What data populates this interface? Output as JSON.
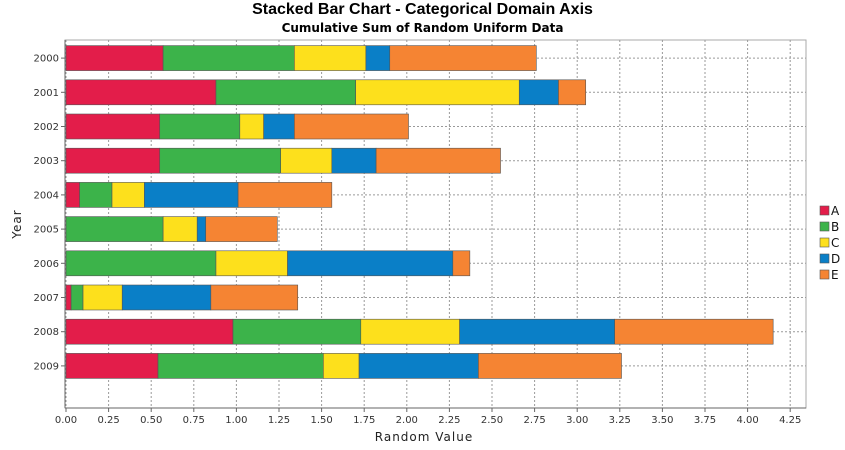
{
  "chart_data": {
    "type": "bar",
    "orientation": "horizontal",
    "stacked": true,
    "title": "Stacked Bar Chart - Categorical Domain Axis",
    "subtitle": "Cumulative Sum of Random Uniform Data",
    "xlabel": "Random Value",
    "ylabel": "Year",
    "xlim": [
      0,
      4.35
    ],
    "xticks": [
      "0.00",
      "0.25",
      "0.50",
      "0.75",
      "1.00",
      "1.25",
      "1.50",
      "1.75",
      "2.00",
      "2.25",
      "2.50",
      "2.75",
      "3.00",
      "3.25",
      "3.50",
      "3.75",
      "4.00",
      "4.25"
    ],
    "grid": true,
    "legend_position": "right",
    "categories": [
      "2000",
      "2001",
      "2002",
      "2003",
      "2004",
      "2005",
      "2006",
      "2007",
      "2008",
      "2009"
    ],
    "series": [
      {
        "name": "A",
        "color": "#e31d4a",
        "values": [
          0.57,
          0.88,
          0.55,
          0.55,
          0.08,
          0.0,
          0.0,
          0.03,
          0.98,
          0.54
        ]
      },
      {
        "name": "B",
        "color": "#3cb34a",
        "values": [
          0.77,
          0.82,
          0.47,
          0.71,
          0.19,
          0.57,
          0.88,
          0.07,
          0.75,
          0.97
        ]
      },
      {
        "name": "C",
        "color": "#fde01c",
        "values": [
          0.42,
          0.96,
          0.14,
          0.3,
          0.19,
          0.2,
          0.42,
          0.23,
          0.58,
          0.21
        ]
      },
      {
        "name": "D",
        "color": "#0a7fc7",
        "values": [
          0.14,
          0.23,
          0.18,
          0.26,
          0.55,
          0.05,
          0.97,
          0.52,
          0.91,
          0.7
        ]
      },
      {
        "name": "E",
        "color": "#f58433",
        "values": [
          0.86,
          0.16,
          0.67,
          0.73,
          0.55,
          0.42,
          0.1,
          0.51,
          0.93,
          0.84
        ]
      }
    ]
  }
}
